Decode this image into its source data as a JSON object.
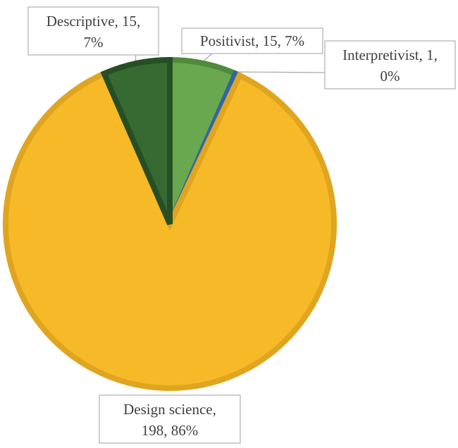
{
  "chart_data": {
    "type": "pie",
    "categories": [
      "Positivist",
      "Interpretivist",
      "Design science",
      "Descriptive"
    ],
    "values": [
      15,
      1,
      198,
      15
    ],
    "percentages": [
      "7%",
      "0%",
      "86%",
      "7%"
    ],
    "title": "",
    "data_labels": [
      {
        "line1": "Positivist, 15, 7%",
        "line2": ""
      },
      {
        "line1": "Interpretivist, 1,",
        "line2": "0%"
      },
      {
        "line1": "Design science,",
        "line2": "198, 86%"
      },
      {
        "line1": "Descriptive, 15,",
        "line2": "7%"
      }
    ],
    "colors": {
      "Positivist": "#6aa84f",
      "Interpretivist": "#4a86c8",
      "Design science": "#f6b928",
      "Descriptive": "#376a32"
    },
    "border_colors": {
      "Positivist": "#4f8b3a",
      "Interpretivist": "#2f66a6",
      "Design science": "#e0a520",
      "Descriptive": "#274f25"
    },
    "start_angle": "12 o'clock",
    "direction": "clockwise",
    "legend": "none"
  }
}
